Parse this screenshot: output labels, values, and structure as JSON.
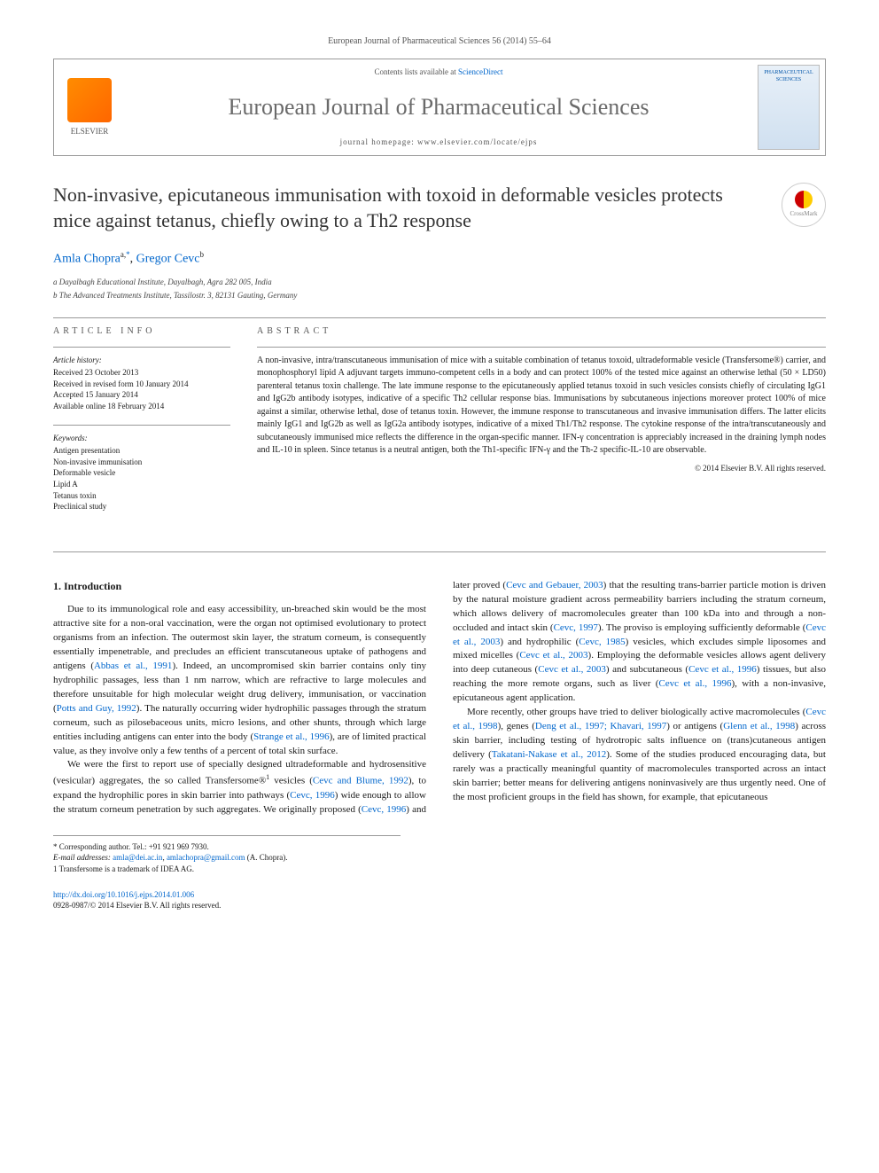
{
  "journal_ref": "European Journal of Pharmaceutical Sciences 56 (2014) 55–64",
  "header": {
    "elsevier_label": "ELSEVIER",
    "contents_prefix": "Contents lists available at ",
    "contents_link": "ScienceDirect",
    "journal_title": "European Journal of Pharmaceutical Sciences",
    "homepage_prefix": "journal homepage: ",
    "homepage_url": "www.elsevier.com/locate/ejps",
    "cover_text": "PHARMACEUTICAL SCIENCES"
  },
  "article": {
    "title": "Non-invasive, epicutaneous immunisation with toxoid in deformable vesicles protects mice against tetanus, chiefly owing to a Th2 response",
    "crossmark_label": "CrossMark",
    "authors_html": "Amla Chopra",
    "author1_sup": "a,",
    "author1_star": "*",
    "author_sep": ", ",
    "author2": "Gregor Cevc",
    "author2_sup": "b",
    "affiliations": {
      "a": "a Dayalbagh Educational Institute, Dayalbagh, Agra 282 005, India",
      "b": "b The Advanced Treatments Institute, Tassilostr. 3, 82131 Gauting, Germany"
    }
  },
  "article_info": {
    "heading": "article info",
    "history_label": "Article history:",
    "received": "Received 23 October 2013",
    "revised": "Received in revised form 10 January 2014",
    "accepted": "Accepted 15 January 2014",
    "online": "Available online 18 February 2014",
    "keywords_label": "Keywords:",
    "keywords": [
      "Antigen presentation",
      "Non-invasive immunisation",
      "Deformable vesicle",
      "Lipid A",
      "Tetanus toxin",
      "Preclinical study"
    ]
  },
  "abstract": {
    "heading": "abstract",
    "text": "A non-invasive, intra/transcutaneous immunisation of mice with a suitable combination of tetanus toxoid, ultradeformable vesicle (Transfersome®) carrier, and monophosphoryl lipid A adjuvant targets immuno-competent cells in a body and can protect 100% of the tested mice against an otherwise lethal (50 × LD50) parenteral tetanus toxin challenge. The late immune response to the epicutaneously applied tetanus toxoid in such vesicles consists chiefly of circulating IgG1 and IgG2b antibody isotypes, indicative of a specific Th2 cellular response bias. Immunisations by subcutaneous injections moreover protect 100% of mice against a similar, otherwise lethal, dose of tetanus toxin. However, the immune response to transcutaneous and invasive immunisation differs. The latter elicits mainly IgG1 and IgG2b as well as IgG2a antibody isotypes, indicative of a mixed Th1/Th2 response. The cytokine response of the intra/transcutaneously and subcutaneously immunised mice reflects the difference in the organ-specific manner. IFN-γ concentration is appreciably increased in the draining lymph nodes and IL-10 in spleen. Since tetanus is a neutral antigen, both the Th1-specific IFN-γ and the Th-2 specific-IL-10 are observable.",
    "copyright": "© 2014 Elsevier B.V. All rights reserved."
  },
  "body": {
    "intro_heading": "1. Introduction",
    "p1_a": "Due to its immunological role and easy accessibility, un-breached skin would be the most attractive site for a non-oral vaccination, were the organ not optimised evolutionary to protect organisms from an infection. The outermost skin layer, the stratum corneum, is consequently essentially impenetrable, and precludes an efficient transcutaneous uptake of pathogens and antigens (",
    "p1_ref1": "Abbas et al., 1991",
    "p1_b": "). Indeed, an uncompromised skin barrier contains only tiny hydrophilic passages, less than 1 nm narrow, which are refractive to large molecules and therefore unsuitable for high molecular weight drug delivery, immunisation, or vaccination (",
    "p1_ref2": "Potts and Guy, 1992",
    "p1_c": "). The naturally occurring wider hydrophilic passages through the stratum corneum, such as pilosebaceous units, micro lesions, and other shunts, through which large entities including antigens can enter into the body (",
    "p1_ref3": "Strange et al., 1996",
    "p1_d": "), are of limited practical value, as they involve only a few tenths of a percent of total skin surface.",
    "p2_a": "We were the first to report use of specially designed ultradeformable and hydrosensitive (vesicular) aggregates, the so called Transfersome®",
    "p2_sup": "1",
    "p2_b": " vesicles (",
    "p2_ref1": "Cevc and Blume, 1992",
    "p2_c": "), to expand the hydrophilic pores in skin barrier into pathways (",
    "p2_ref2": "Cevc, 1996",
    "p2_d": ") wide enough to allow the stratum corneum penetration by such aggregates. We originally proposed (",
    "p2_ref3": "Cevc, 1996",
    "p2_e": ") and later proved (",
    "p2_ref4": "Cevc and Gebauer, 2003",
    "p2_f": ") that the resulting trans-barrier particle motion is driven by the natural moisture gradient across permeability barriers including the stratum corneum, which allows delivery of macromolecules greater than 100 kDa into and through a non-occluded and intact skin (",
    "p2_ref5": "Cevc, 1997",
    "p2_g": "). The proviso is employing sufficiently deformable (",
    "p2_ref6": "Cevc et al., 2003",
    "p2_h": ") and hydrophilic (",
    "p2_ref7": "Cevc, 1985",
    "p2_i": ") vesicles, which excludes simple liposomes and mixed micelles (",
    "p2_ref8": "Cevc et al., 2003",
    "p2_j": "). Employing the deformable vesicles allows agent delivery into deep cutaneous (",
    "p2_ref9": "Cevc et al., 2003",
    "p2_k": ") and subcutaneous (",
    "p2_ref10": "Cevc et al., 1996",
    "p2_l": ") tissues, but also reaching the more remote organs, such as liver (",
    "p2_ref11": "Cevc et al., 1996",
    "p2_m": "), with a non-invasive, epicutaneous agent application.",
    "p3_a": "More recently, other groups have tried to deliver biologically active macromolecules (",
    "p3_ref1": "Cevc et al., 1998",
    "p3_b": "), genes (",
    "p3_ref2": "Deng et al., 1997; Khavari, 1997",
    "p3_c": ") or antigens (",
    "p3_ref3": "Glenn et al., 1998",
    "p3_d": ") across skin barrier, including testing of hydrotropic salts influence on (trans)cutaneous antigen delivery (",
    "p3_ref4": "Takatani-Nakase et al., 2012",
    "p3_e": "). Some of the studies produced encouraging data, but rarely was a practically meaningful quantity of macromolecules transported across an intact skin barrier; better means for delivering antigens noninvasively are thus urgently need. One of the most proficient groups in the field has shown, for example, that epicutaneous"
  },
  "footnotes": {
    "corr_label": "* Corresponding author. Tel.: +91 921 969 7930.",
    "email_label": "E-mail addresses: ",
    "email1": "amla@dei.ac.in",
    "email_sep": ", ",
    "email2": "amlachopra@gmail.com",
    "email_suffix": " (A. Chopra).",
    "fn1": "1  Transfersome is a trademark of IDEA AG.",
    "doi": "http://dx.doi.org/10.1016/j.ejps.2014.01.006",
    "issn_line": "0928-0987/© 2014 Elsevier B.V. All rights reserved."
  },
  "colors": {
    "link": "#0066cc",
    "text": "#1a1a1a",
    "muted": "#555555",
    "rule": "#999999"
  }
}
